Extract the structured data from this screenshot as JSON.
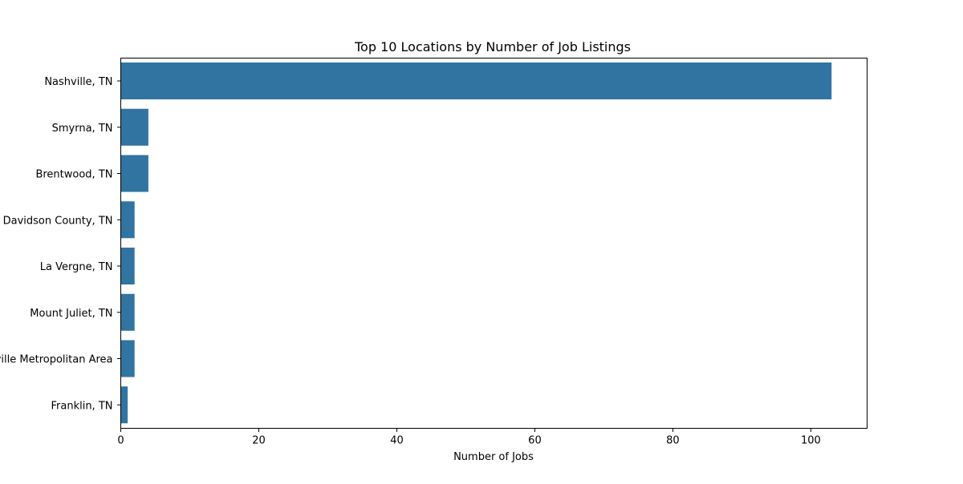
{
  "chart_data": {
    "type": "bar",
    "orientation": "horizontal",
    "title": "Top 10 Locations by Number of Job Listings",
    "xlabel": "Number of Jobs",
    "ylabel": "",
    "categories": [
      "Nashville, TN",
      "Smyrna, TN",
      "Brentwood, TN",
      "Davidson County, TN",
      "La Vergne, TN",
      "Mount Juliet, TN",
      "Nashville Metropolitan Area",
      "Franklin, TN"
    ],
    "values": [
      103,
      4,
      4,
      2,
      2,
      2,
      2,
      1
    ],
    "xlim": [
      0,
      108.15
    ],
    "xticks": [
      0,
      20,
      40,
      60,
      80,
      100
    ],
    "bar_color": "#3274a1",
    "grid": false,
    "legend": "none"
  }
}
